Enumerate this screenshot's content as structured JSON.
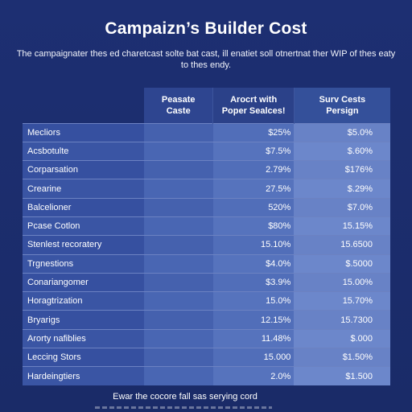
{
  "title": "Campaizn’s Builder Cost",
  "subtitle": "The campaignater thes ed charetcast solte bat cast, ill enatiet soll otnertnat ther WIP of thes eaty to thes endy.",
  "table": {
    "headers": {
      "c1": "Peasate\nCaste",
      "c2": "Arocrt with\nPoper Sealces!",
      "c3": "Surv Cests\nPersign"
    },
    "rows": [
      {
        "name": "Mecliors",
        "a": "",
        "b": "$25%",
        "c": "$5.0%"
      },
      {
        "name": "Acsbotulte",
        "a": "",
        "b": "$7.5%",
        "c": "$.60%"
      },
      {
        "name": "Corparsation",
        "a": "",
        "b": "2.79%",
        "c": "$176%"
      },
      {
        "name": "Crearine",
        "a": "",
        "b": "27.5%",
        "c": "$.29%"
      },
      {
        "name": "Balcelioner",
        "a": "",
        "b": "520%",
        "c": "$7.0%"
      },
      {
        "name": "Pcase Cotlon",
        "a": "",
        "b": "$80%",
        "c": "15.15%"
      },
      {
        "name": "Stenlest recoratery",
        "a": "",
        "b": "15.10%",
        "c": "15.6500"
      },
      {
        "name": "Trgnestions",
        "a": "",
        "b": "$4.0%",
        "c": "$.5000"
      },
      {
        "name": "Conariangomer",
        "a": "",
        "b": "$3.9%",
        "c": "15.00%"
      },
      {
        "name": "Horagtrization",
        "a": "",
        "b": "15.0%",
        "c": "15.70%"
      },
      {
        "name": "Bryarigs",
        "a": "",
        "b": "12.15%",
        "c": "15.7300"
      },
      {
        "name": "Arorty nafiblies",
        "a": "",
        "b": "11.48%",
        "c": "$.000"
      },
      {
        "name": "Leccing Stors",
        "a": "",
        "b": "15.000",
        "c": "$1.50%"
      },
      {
        "name": "Hardeingtiers",
        "a": "",
        "b": "2.0%",
        "c": "$1.500"
      }
    ]
  },
  "footer": "Ewar the cocore fall sas serying cord"
}
